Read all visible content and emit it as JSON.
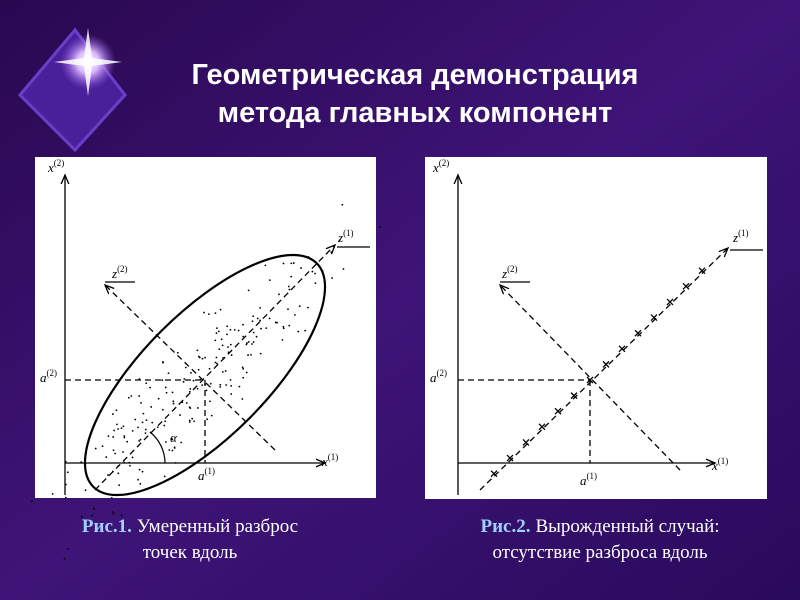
{
  "slide": {
    "title": [
      "Геометрическая демонстрация",
      "метода главных компонент"
    ],
    "figures": [
      {
        "labels": [
          {
            "base": "x",
            "sup": "(2)"
          },
          {
            "base": "z",
            "sup": "(1)"
          },
          {
            "base": "z",
            "sup": "(2)"
          },
          {
            "base": "a",
            "sup": "(2)"
          },
          {
            "base": "a",
            "sup": "(1)"
          },
          {
            "base": "x",
            "sup": "(1)"
          }
        ],
        "angle": "α",
        "caption": {
          "ref": "Рис.1.",
          "lines": [
            "Умеренный разброс",
            "точек вдоль"
          ]
        }
      },
      {
        "labels": [
          {
            "base": "x",
            "sup": "(2)"
          },
          {
            "base": "z",
            "sup": "(1)"
          },
          {
            "base": "z",
            "sup": "(2)"
          },
          {
            "base": "a",
            "sup": "(2)"
          },
          {
            "base": "a",
            "sup": "(1)"
          },
          {
            "base": "x",
            "sup": "(1)"
          }
        ],
        "caption": {
          "ref": "Рис.2.",
          "lines": [
            "Вырожденный случай:",
            "отсутствие разброса вдоль"
          ]
        }
      }
    ]
  }
}
